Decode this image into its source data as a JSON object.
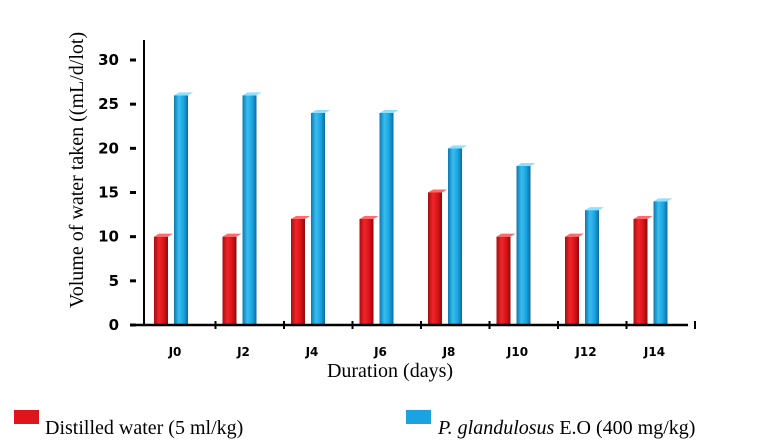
{
  "chart_data": {
    "type": "bar",
    "categories": [
      "J0",
      "J2",
      "J4",
      "J6",
      "J8",
      "J10",
      "J12",
      "J14"
    ],
    "series": [
      {
        "name_main": "Distilled water (5 ml/kg)",
        "name_italic": "",
        "color": "#e0141a",
        "values": [
          10,
          10,
          12,
          12,
          15,
          10,
          10,
          12
        ]
      },
      {
        "name_italic": "P. glandulosus",
        "name_main": " E.O (400 mg/kg)",
        "color": "#1aa3e0",
        "values": [
          26,
          26,
          24,
          24,
          20,
          18,
          13,
          14
        ]
      }
    ],
    "xlabel": "Duration (days)",
    "ylabel": "Volume of water taken ((mL/d/lot)",
    "ylim": [
      0,
      30
    ],
    "yticks": [
      0,
      5,
      10,
      15,
      20,
      25,
      30
    ],
    "grid": false,
    "legend": "bottom"
  }
}
